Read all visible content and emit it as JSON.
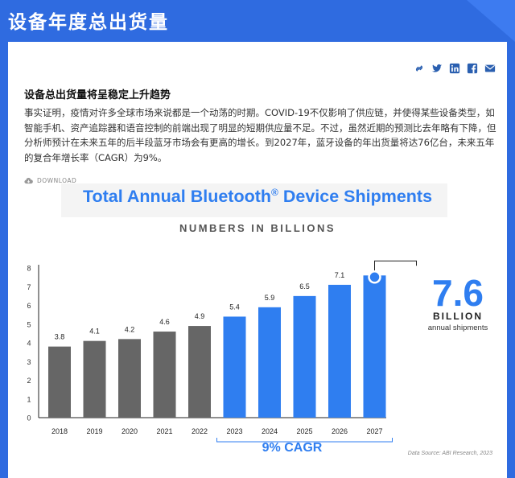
{
  "header": {
    "title": "设备年度总出货量"
  },
  "share_icons": [
    "link-icon",
    "twitter-icon",
    "linkedin-icon",
    "facebook-icon",
    "email-icon"
  ],
  "article": {
    "title": "设备总出货量将呈稳定上升趋势",
    "paragraph": "事实证明，疫情对许多全球市场来说都是一个动荡的时期。COVID-19不仅影响了供应链，并使得某些设备类型，如智能手机、资产追踪器和语音控制的前端出现了明显的短期供应量不足。不过，虽然近期的预测比去年略有下降，但分析师预计在未来五年的后半段蓝牙市场会有更高的增长。到2027年，蓝牙设备的年出货量将达76亿台，未来五年的复合年增长率（CAGR）为9%。",
    "download_label": "DOWNLOAD"
  },
  "colors": {
    "header_blue": "#2f6be0",
    "bar_gray": "#666666",
    "bar_blue": "#2f7ef0"
  },
  "chart_data": {
    "type": "bar",
    "title": "Total Annual Bluetooth",
    "title_mark": "®",
    "title_rest": " Device Shipments",
    "subtitle": "NUMBERS IN BILLIONS",
    "categories": [
      "2018",
      "2019",
      "2020",
      "2021",
      "2022",
      "2023",
      "2024",
      "2025",
      "2026",
      "2027"
    ],
    "values": [
      3.8,
      4.1,
      4.2,
      4.6,
      4.9,
      5.4,
      5.9,
      6.5,
      7.1,
      7.6
    ],
    "data_labels": [
      "3.8",
      "4.1",
      "4.2",
      "4.6",
      "4.9",
      "5.4",
      "5.9",
      "6.5",
      "7.1",
      ""
    ],
    "forecast_from_index": 5,
    "yticks": [
      0,
      1,
      2,
      3,
      4,
      5,
      6,
      7,
      8
    ],
    "ylim": [
      0,
      8
    ],
    "grid": false,
    "callout": {
      "value": "7.6",
      "unit": "BILLION",
      "label": "annual shipments"
    },
    "cagr_label": "9% CAGR",
    "source": "Data Source: ABI Research, 2023"
  }
}
